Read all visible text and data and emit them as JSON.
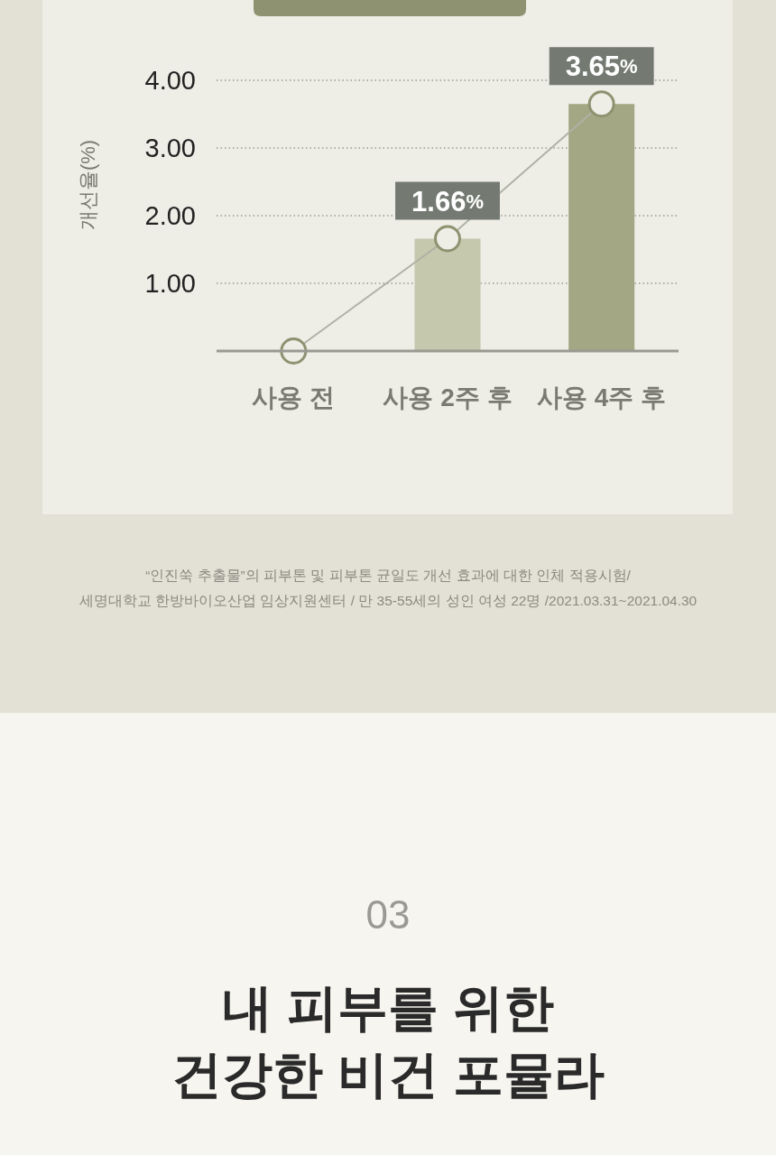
{
  "chart_data": {
    "type": "bar",
    "categories": [
      "사용 전",
      "사용 2주 후",
      "사용 4주 후"
    ],
    "ylabel": "개선율(%)",
    "ylim": [
      0,
      4
    ],
    "yticks": [
      {
        "value": 1,
        "label": "1.00"
      },
      {
        "value": 2,
        "label": "2.00"
      },
      {
        "value": 3,
        "label": "3.00"
      },
      {
        "value": 4,
        "label": "4.00"
      }
    ],
    "grid": "y",
    "series": [
      {
        "values": [
          null,
          1.66,
          3.65
        ],
        "colors": [
          null,
          "#c5c8ad",
          "#a3a783"
        ]
      },
      {
        "type": "line",
        "color": "#b0b1a5",
        "marker": "circle",
        "line_style": "solid",
        "values": [
          0,
          1.66,
          3.65
        ],
        "value_labels": [
          null,
          "1.66%",
          "3.65%"
        ]
      }
    ],
    "annotations": [
      "“인진쑥 추출물”의 피부톤 및 피부톤 균일도 개선 효과에 대한 인체 적용시험/",
      "세명대학교 한방바이오산업 임상지원센터 / 만 35-55세의 성인 여성 22명 /2021.03.31~2021.04.30",
      "03",
      "내 피부를 위한",
      "건강한 비건 포뮬라"
    ]
  }
}
